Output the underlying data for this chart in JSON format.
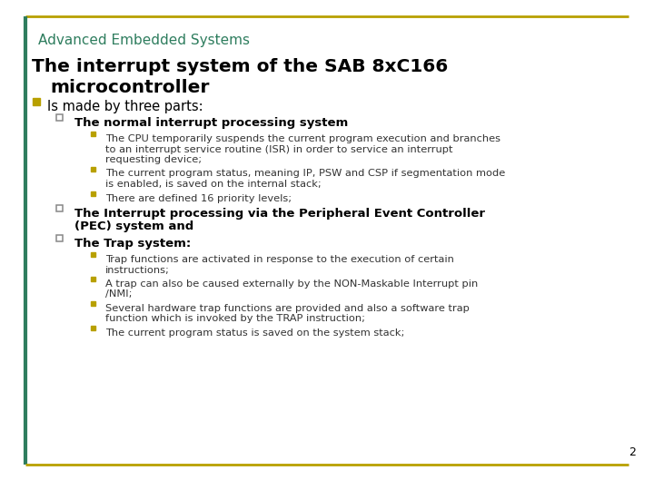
{
  "background_color": "#ffffff",
  "border_color": "#b8a000",
  "header_text": "Advanced Embedded Systems",
  "header_color": "#2e7d5e",
  "title_line1": "The interrupt system of the SAB 8xC166",
  "title_line2": "microcontroller",
  "title_color": "#000000",
  "bullet_l1_color": "#b8a000",
  "bullet_l2_color": "#888888",
  "bullet_l3_color": "#b8a000",
  "text_color": "#333333",
  "page_number": "2",
  "content_lines": [
    {
      "level": 1,
      "text": "Is made by three parts:",
      "bold": false
    },
    {
      "level": 2,
      "text": "The normal interrupt processing system",
      "bold": true
    },
    {
      "level": 3,
      "text": "The CPU temporarily suspends the current program execution and branches to an interrupt service routine (ISR) in order to service an interrupt requesting device;",
      "bold": false
    },
    {
      "level": 3,
      "text": "The current program status, meaning IP, PSW and CSP if segmentation mode is enabled, is saved on the internal stack;",
      "bold": false
    },
    {
      "level": 3,
      "text": "There are defined 16 priority levels;",
      "bold": false
    },
    {
      "level": 2,
      "text": "The Interrupt processing via the Peripheral Event Controller (PEC) system and",
      "bold": true
    },
    {
      "level": 2,
      "text": "The Trap system:",
      "bold": true
    },
    {
      "level": 3,
      "text": "Trap functions are activated in response to the execution of certain instructions;",
      "bold": false
    },
    {
      "level": 3,
      "text": "A trap can also be caused externally by the NON-Maskable Interrupt pin /NMI;",
      "bold": false
    },
    {
      "level": 3,
      "text": "Several hardware trap functions are provided and also a software trap function which is invoked by the TRAP instruction;",
      "bold": false
    },
    {
      "level": 3,
      "text": "The current program status is saved on the system stack;",
      "bold": false
    }
  ]
}
